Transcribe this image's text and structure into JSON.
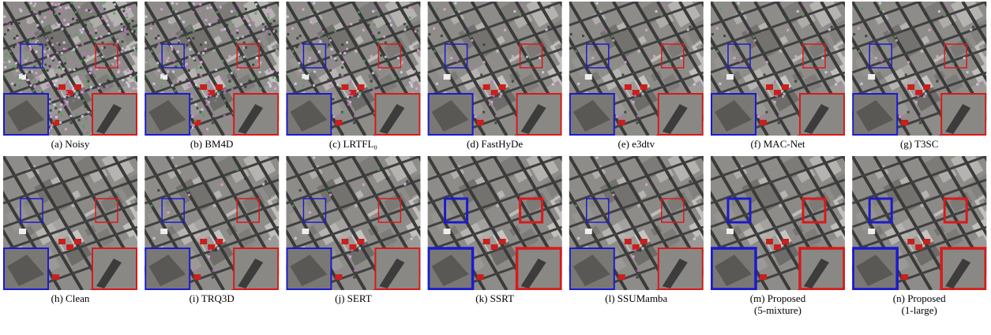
{
  "panels": [
    {
      "caption": [
        "(a) Noisy"
      ]
    },
    {
      "caption": [
        "(b) BM4D"
      ]
    },
    {
      "caption": [
        "(c) LRTFL₀"
      ]
    },
    {
      "caption": [
        "(d) FastHyDe"
      ]
    },
    {
      "caption": [
        "(e) e3dtv"
      ]
    },
    {
      "caption": [
        "(f) MAC-Net"
      ]
    },
    {
      "caption": [
        "(g) T3SC"
      ]
    },
    {
      "caption": [
        "(h) Clean"
      ]
    },
    {
      "caption": [
        "(i) TRQ3D"
      ]
    },
    {
      "caption": [
        "(j) SERT"
      ]
    },
    {
      "caption": [
        "(k) SSRT"
      ]
    },
    {
      "caption": [
        "(l) SSUMamba"
      ]
    },
    {
      "caption": [
        "(m) Proposed",
        "(5-mixture)"
      ]
    },
    {
      "caption": [
        "(n) Proposed",
        "(1-large)"
      ]
    }
  ]
}
